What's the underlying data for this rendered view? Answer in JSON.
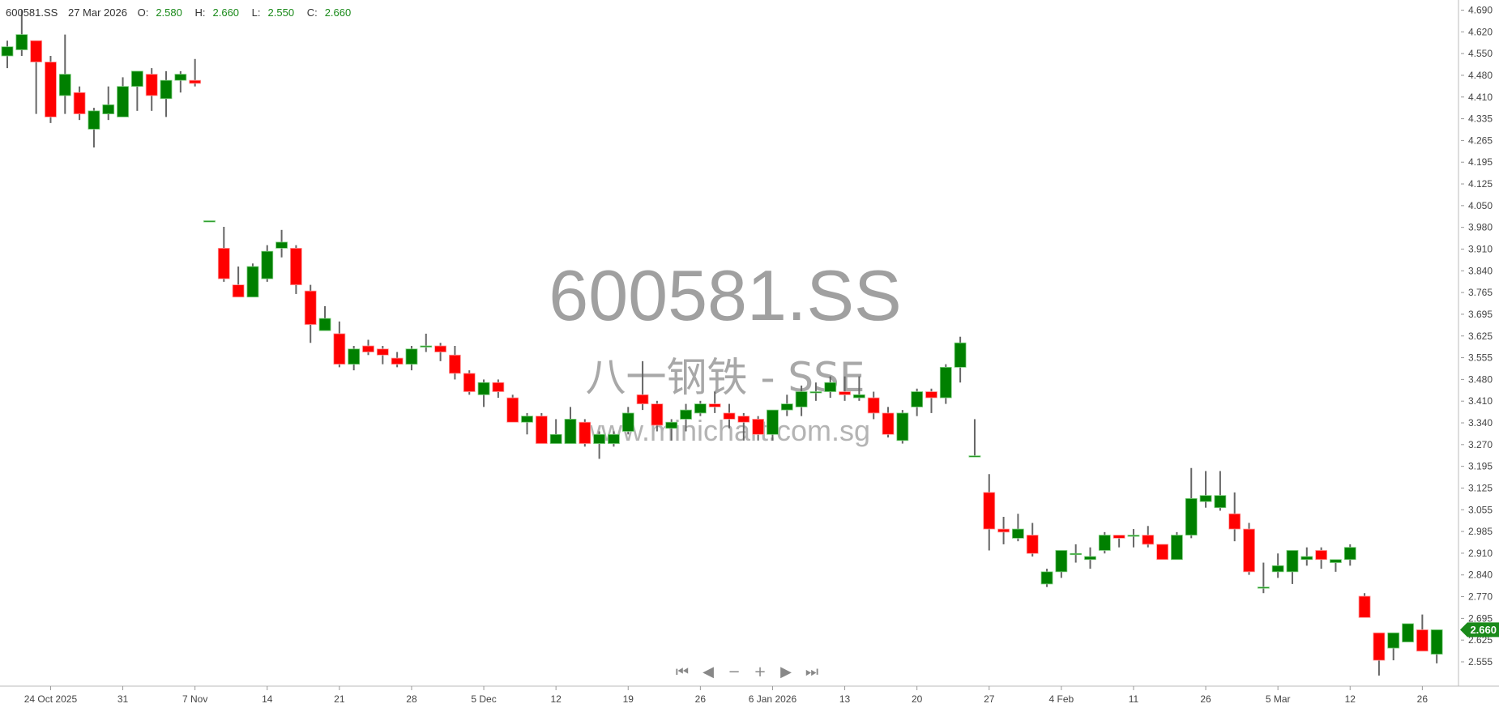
{
  "header": {
    "symbol": "600581.SS",
    "date": "27 Mar 2026",
    "open_label": "O:",
    "open": "2.580",
    "high_label": "H:",
    "high": "2.660",
    "low_label": "L:",
    "low": "2.550",
    "close_label": "C:",
    "close": "2.660"
  },
  "watermark": {
    "symbol": "600581.SS",
    "name": "八一钢铁 - SSE",
    "site": "www.minichart.com.sg"
  },
  "last_price_tag": "2.660",
  "navigation": {
    "first": "⏮",
    "prev": "◀",
    "zoom_out": "−",
    "zoom_in": "+",
    "next": "▶",
    "last": "⏭"
  },
  "colors": {
    "up": "#008000",
    "down": "#ff0000",
    "wick": "#666666",
    "watermark": "#a0a0a0",
    "tag": "#1a8a1a"
  },
  "chart_data": {
    "type": "candlestick",
    "ylim": [
      2.555,
      4.69
    ],
    "grid": false,
    "y_ticks": [
      "4.690",
      "4.620",
      "4.550",
      "4.480",
      "4.410",
      "4.335",
      "4.265",
      "4.195",
      "4.125",
      "4.050",
      "3.980",
      "3.910",
      "3.840",
      "3.765",
      "3.695",
      "3.625",
      "3.555",
      "3.480",
      "3.410",
      "3.340",
      "3.270",
      "3.195",
      "3.125",
      "3.055",
      "2.985",
      "2.910",
      "2.840",
      "2.770",
      "2.695",
      "2.625",
      "2.555"
    ],
    "x_ticks": [
      {
        "index": 3,
        "label": "24 Oct 2025"
      },
      {
        "index": 8,
        "label": "31"
      },
      {
        "index": 13,
        "label": "7 Nov"
      },
      {
        "index": 18,
        "label": "14"
      },
      {
        "index": 23,
        "label": "21"
      },
      {
        "index": 28,
        "label": "28"
      },
      {
        "index": 33,
        "label": "5 Dec"
      },
      {
        "index": 38,
        "label": "12"
      },
      {
        "index": 43,
        "label": "19"
      },
      {
        "index": 48,
        "label": "26"
      },
      {
        "index": 53,
        "label": "6 Jan 2026"
      },
      {
        "index": 58,
        "label": "13"
      },
      {
        "index": 63,
        "label": "20"
      },
      {
        "index": 68,
        "label": "27"
      },
      {
        "index": 73,
        "label": "4 Feb"
      },
      {
        "index": 78,
        "label": "11"
      },
      {
        "index": 83,
        "label": "26"
      },
      {
        "index": 88,
        "label": "5 Mar"
      },
      {
        "index": 93,
        "label": "12"
      },
      {
        "index": 98,
        "label": "26"
      }
    ],
    "ohlc": [
      [
        4.54,
        4.59,
        4.5,
        4.57
      ],
      [
        4.56,
        4.69,
        4.54,
        4.61
      ],
      [
        4.59,
        4.59,
        4.35,
        4.52
      ],
      [
        4.52,
        4.54,
        4.32,
        4.34
      ],
      [
        4.41,
        4.61,
        4.35,
        4.48
      ],
      [
        4.42,
        4.44,
        4.33,
        4.35
      ],
      [
        4.3,
        4.37,
        4.24,
        4.36
      ],
      [
        4.35,
        4.44,
        4.33,
        4.38
      ],
      [
        4.34,
        4.47,
        4.34,
        4.44
      ],
      [
        4.44,
        4.49,
        4.36,
        4.49
      ],
      [
        4.48,
        4.5,
        4.36,
        4.41
      ],
      [
        4.4,
        4.49,
        4.34,
        4.46
      ],
      [
        4.46,
        4.49,
        4.42,
        4.48
      ],
      [
        4.46,
        4.53,
        4.44,
        4.45
      ],
      [
        4.0,
        4.0,
        4.0,
        4.0
      ],
      [
        3.91,
        3.98,
        3.8,
        3.81
      ],
      [
        3.79,
        3.85,
        3.75,
        3.75
      ],
      [
        3.75,
        3.86,
        3.75,
        3.85
      ],
      [
        3.81,
        3.92,
        3.8,
        3.9
      ],
      [
        3.91,
        3.97,
        3.88,
        3.93
      ],
      [
        3.91,
        3.92,
        3.76,
        3.79
      ],
      [
        3.77,
        3.79,
        3.6,
        3.66
      ],
      [
        3.64,
        3.72,
        3.64,
        3.68
      ],
      [
        3.63,
        3.67,
        3.52,
        3.53
      ],
      [
        3.53,
        3.59,
        3.51,
        3.58
      ],
      [
        3.59,
        3.61,
        3.56,
        3.57
      ],
      [
        3.58,
        3.59,
        3.53,
        3.56
      ],
      [
        3.55,
        3.57,
        3.52,
        3.53
      ],
      [
        3.53,
        3.59,
        3.51,
        3.58
      ],
      [
        3.59,
        3.63,
        3.57,
        3.59
      ],
      [
        3.59,
        3.6,
        3.54,
        3.57
      ],
      [
        3.56,
        3.59,
        3.48,
        3.5
      ],
      [
        3.5,
        3.51,
        3.43,
        3.44
      ],
      [
        3.43,
        3.48,
        3.39,
        3.47
      ],
      [
        3.47,
        3.48,
        3.42,
        3.44
      ],
      [
        3.42,
        3.43,
        3.34,
        3.34
      ],
      [
        3.34,
        3.37,
        3.3,
        3.36
      ],
      [
        3.36,
        3.37,
        3.27,
        3.27
      ],
      [
        3.27,
        3.35,
        3.27,
        3.3
      ],
      [
        3.27,
        3.39,
        3.27,
        3.35
      ],
      [
        3.34,
        3.35,
        3.26,
        3.27
      ],
      [
        3.27,
        3.31,
        3.22,
        3.3
      ],
      [
        3.27,
        3.31,
        3.26,
        3.3
      ],
      [
        3.31,
        3.39,
        3.3,
        3.37
      ],
      [
        3.43,
        3.54,
        3.38,
        3.4
      ],
      [
        3.4,
        3.41,
        3.31,
        3.33
      ],
      [
        3.32,
        3.35,
        3.28,
        3.34
      ],
      [
        3.35,
        3.4,
        3.31,
        3.38
      ],
      [
        3.37,
        3.41,
        3.36,
        3.4
      ],
      [
        3.4,
        3.44,
        3.37,
        3.39
      ],
      [
        3.37,
        3.4,
        3.32,
        3.35
      ],
      [
        3.36,
        3.37,
        3.28,
        3.34
      ],
      [
        3.35,
        3.36,
        3.28,
        3.3
      ],
      [
        3.3,
        3.38,
        3.28,
        3.38
      ],
      [
        3.38,
        3.43,
        3.36,
        3.4
      ],
      [
        3.39,
        3.46,
        3.36,
        3.44
      ],
      [
        3.44,
        3.47,
        3.41,
        3.44
      ],
      [
        3.44,
        3.49,
        3.42,
        3.47
      ],
      [
        3.44,
        3.49,
        3.41,
        3.43
      ],
      [
        3.42,
        3.49,
        3.41,
        3.43
      ],
      [
        3.42,
        3.44,
        3.35,
        3.37
      ],
      [
        3.37,
        3.39,
        3.29,
        3.3
      ],
      [
        3.28,
        3.38,
        3.27,
        3.37
      ],
      [
        3.39,
        3.45,
        3.36,
        3.44
      ],
      [
        3.44,
        3.45,
        3.37,
        3.42
      ],
      [
        3.42,
        3.53,
        3.4,
        3.52
      ],
      [
        3.52,
        3.62,
        3.47,
        3.6
      ],
      [
        3.23,
        3.35,
        3.23,
        3.23
      ],
      [
        3.11,
        3.17,
        2.92,
        2.99
      ],
      [
        2.99,
        3.03,
        2.94,
        2.98
      ],
      [
        2.96,
        3.04,
        2.95,
        2.99
      ],
      [
        2.97,
        3.01,
        2.9,
        2.91
      ],
      [
        2.81,
        2.86,
        2.8,
        2.85
      ],
      [
        2.85,
        2.92,
        2.83,
        2.92
      ],
      [
        2.91,
        2.94,
        2.88,
        2.91
      ],
      [
        2.89,
        2.93,
        2.86,
        2.9
      ],
      [
        2.92,
        2.98,
        2.91,
        2.97
      ],
      [
        2.97,
        2.97,
        2.93,
        2.96
      ],
      [
        2.97,
        2.99,
        2.93,
        2.97
      ],
      [
        2.97,
        3.0,
        2.93,
        2.94
      ],
      [
        2.94,
        2.94,
        2.89,
        2.89
      ],
      [
        2.89,
        2.98,
        2.89,
        2.97
      ],
      [
        2.97,
        3.19,
        2.96,
        3.09
      ],
      [
        3.08,
        3.18,
        3.06,
        3.1
      ],
      [
        3.06,
        3.18,
        3.05,
        3.1
      ],
      [
        3.04,
        3.11,
        2.95,
        2.99
      ],
      [
        2.99,
        3.01,
        2.84,
        2.85
      ],
      [
        2.8,
        2.88,
        2.78,
        2.8
      ],
      [
        2.85,
        2.91,
        2.83,
        2.87
      ],
      [
        2.85,
        2.92,
        2.81,
        2.92
      ],
      [
        2.89,
        2.93,
        2.87,
        2.9
      ],
      [
        2.92,
        2.93,
        2.86,
        2.89
      ],
      [
        2.88,
        2.89,
        2.85,
        2.89
      ],
      [
        2.89,
        2.94,
        2.87,
        2.93
      ],
      [
        2.77,
        2.78,
        2.7,
        2.7
      ],
      [
        2.65,
        2.65,
        2.51,
        2.56
      ],
      [
        2.6,
        2.65,
        2.56,
        2.65
      ],
      [
        2.62,
        2.68,
        2.62,
        2.68
      ],
      [
        2.66,
        2.71,
        2.59,
        2.59
      ],
      [
        2.58,
        2.66,
        2.55,
        2.66
      ]
    ]
  }
}
